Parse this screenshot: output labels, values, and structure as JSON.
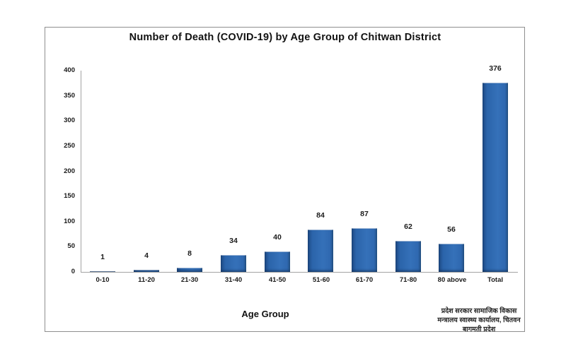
{
  "chart": {
    "title": "Number of Death (COVID-19) by Age Group of Chitwan District",
    "xlabel": "Age Group",
    "source_lines": [
      "प्रदेश सरकार सामाजिक विकास",
      "मन्त्रालय स्वास्थ्य कार्यालय, चितवन",
      "बागमती प्रदेश"
    ]
  },
  "chart_data": {
    "type": "bar",
    "title": "Number of Death (COVID-19) by Age Group of Chitwan District",
    "xlabel": "Age Group",
    "ylabel": "",
    "categories": [
      "0-10",
      "11-20",
      "21-30",
      "31-40",
      "41-50",
      "51-60",
      "61-70",
      "71-80",
      "80 above",
      "Total"
    ],
    "values": [
      1,
      4,
      8,
      34,
      40,
      84,
      87,
      62,
      56,
      376
    ],
    "ylim": [
      0,
      400
    ],
    "yticks": [
      0,
      50,
      100,
      150,
      200,
      250,
      300,
      350,
      400
    ],
    "grid": false,
    "legend_position": "none",
    "data_labels": true,
    "bar_color": "#3571b9",
    "bar_color_dark": "#133463",
    "frame_border_color": "#8f8f8f",
    "axis_line_color": "#a3a3a3",
    "annotation": "प्रदेश सरकार सामाजिक विकास मन्त्रालय स्वास्थ्य कार्यालय, चितवन बागमती प्रदेश"
  }
}
